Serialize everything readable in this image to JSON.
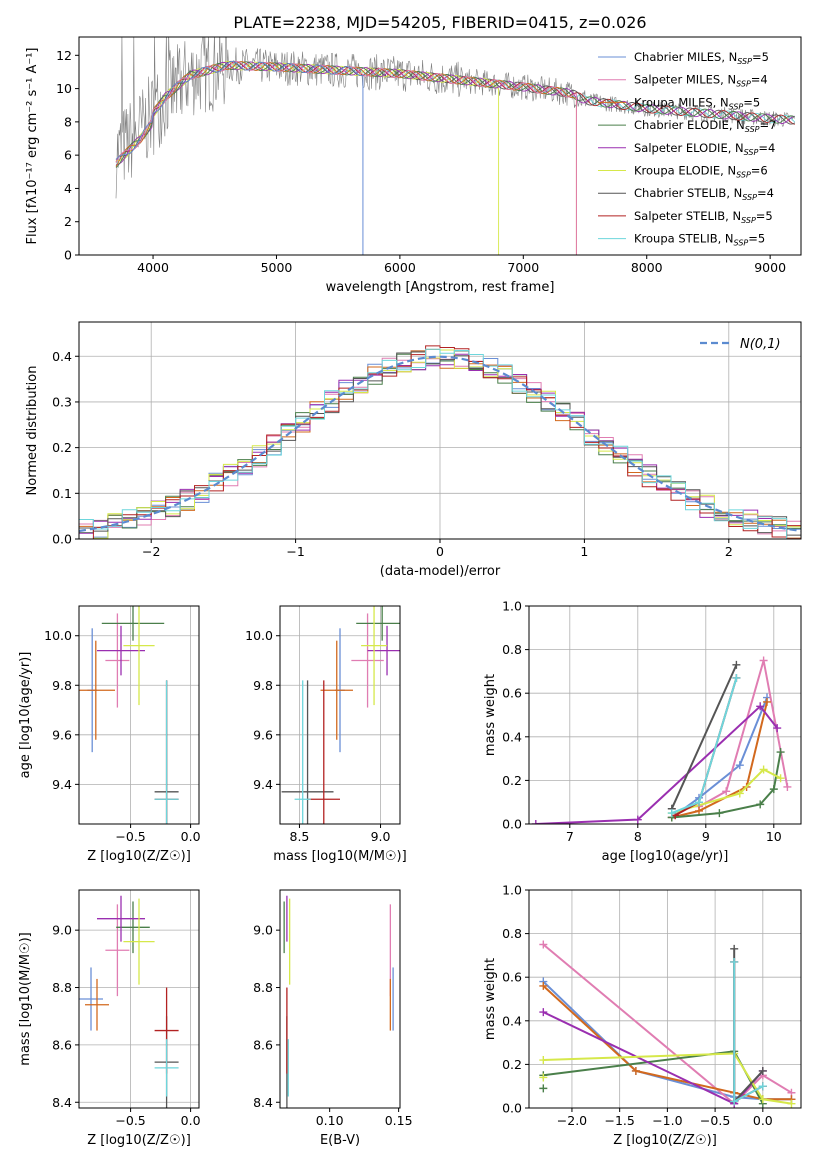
{
  "figure_title": "PLATE=2238, MJD=54205, FIBERID=0415, z=0.026",
  "colors": {
    "Chabrier MILES": "#6a8fd6",
    "Salpeter MILES": "#e07db2",
    "Kroupa MILES": "#d2691e",
    "Chabrier ELODIE": "#4a7f4a",
    "Salpeter ELODIE": "#9a2fb0",
    "Kroupa ELODIE": "#d6e84a",
    "Chabrier STELIB": "#555555",
    "Salpeter STELIB": "#b22222",
    "Kroupa STELIB": "#6dd6dc",
    "data": "#808080",
    "grid": "#b0b0b0",
    "normal_curve": "#5b8bd0"
  },
  "chart_data": [
    {
      "id": "spectrum",
      "type": "line",
      "title": "",
      "xlabel": "wavelength [Angstrom, rest frame]",
      "ylabel": "Flux [fλ10⁻¹⁷ erg cm⁻² s⁻¹ A⁻¹]",
      "xlim": [
        3400,
        9250
      ],
      "ylim": [
        0,
        13.1
      ],
      "xticks": [
        4000,
        5000,
        6000,
        7000,
        8000,
        9000
      ],
      "yticks": [
        0,
        2,
        4,
        6,
        8,
        10,
        12
      ],
      "grid": false,
      "legend_placement": "top-right",
      "legend": [
        "Chabrier MILES, N_SSP=5",
        "Salpeter MILES, N_SSP=4",
        "Kroupa MILES, N_SSP=5",
        "Chabrier ELODIE, N_SSP=7",
        "Salpeter ELODIE, N_SSP=4",
        "Kroupa ELODIE, N_SSP=6",
        "Chabrier STELIB, N_SSP=4",
        "Salpeter STELIB, N_SSP=5",
        "Kroupa STELIB, N_SSP=5"
      ],
      "data_envelope": {
        "x": [
          3700,
          3900,
          4100,
          4300,
          4600,
          5000,
          5500,
          6000,
          6500,
          7000,
          7400,
          7500,
          8000,
          8500,
          9000,
          9200
        ],
        "y": [
          6.0,
          7.5,
          9.5,
          10.8,
          11.4,
          11.3,
          11.1,
          10.9,
          10.5,
          10.1,
          9.7,
          9.3,
          8.8,
          8.5,
          8.2,
          8.1
        ]
      },
      "model_cutoffs": {
        "Chabrier MILES": 5700,
        "Salpeter MILES": 7430,
        "Kroupa MILES": 7430,
        "Kroupa ELODIE": 6800
      }
    },
    {
      "id": "residuals",
      "type": "step",
      "xlabel": "(data-model)/error",
      "ylabel": "Normed distribution",
      "xlim": [
        -2.5,
        2.5
      ],
      "ylim": [
        0,
        0.475
      ],
      "xticks": [
        -2,
        -1,
        0,
        1,
        2
      ],
      "yticks": [
        0.0,
        0.1,
        0.2,
        0.3,
        0.4
      ],
      "grid": true,
      "legend_placement": "top-right",
      "legend": [
        "N(0,1)"
      ],
      "bin_width": 0.1
    },
    {
      "id": "age_vs_Z",
      "type": "errorbar",
      "xlabel": "Z [log10(Z/Z☉)]",
      "ylabel": "age  [log10(age/yr)]",
      "xlim": [
        -0.93,
        0.07
      ],
      "ylim": [
        9.24,
        10.12
      ],
      "xticks": [
        -0.5,
        0.0
      ],
      "yticks": [
        9.4,
        9.6,
        9.8,
        10.0
      ],
      "grid": true,
      "points": [
        {
          "model": "Chabrier MILES",
          "x": -0.82,
          "xerr": 0.04,
          "y": 9.78,
          "yerr": 0.25
        },
        {
          "model": "Salpeter MILES",
          "x": -0.61,
          "xerr": 0.1,
          "y": 9.9,
          "yerr": 0.19
        },
        {
          "model": "Kroupa MILES",
          "x": -0.79,
          "xerr": 0.16,
          "y": 9.78,
          "yerr": 0.2
        },
        {
          "model": "Chabrier ELODIE",
          "x": -0.48,
          "xerr": 0.26,
          "y": 10.05,
          "yerr": 0.07
        },
        {
          "model": "Salpeter ELODIE",
          "x": -0.58,
          "xerr": 0.2,
          "y": 9.94,
          "yerr": 0.1
        },
        {
          "model": "Kroupa ELODIE",
          "x": -0.43,
          "xerr": 0.13,
          "y": 9.96,
          "yerr": 0.24
        },
        {
          "model": "Chabrier STELIB",
          "x": -0.2,
          "xerr": 0.1,
          "y": 9.37,
          "yerr": 0.45
        },
        {
          "model": "Salpeter STELIB",
          "x": -0.2,
          "xerr": 0.1,
          "y": 9.34,
          "yerr": 0.48
        },
        {
          "model": "Kroupa STELIB",
          "x": -0.2,
          "xerr": 0.1,
          "y": 9.34,
          "yerr": 0.48
        }
      ]
    },
    {
      "id": "age_vs_mass",
      "type": "errorbar",
      "xlabel": "mass [log10(M/M☉)]",
      "ylabel": "",
      "xlim": [
        8.38,
        9.12
      ],
      "ylim": [
        9.24,
        10.12
      ],
      "xticks": [
        8.5,
        9.0
      ],
      "yticks": [
        9.4,
        9.6,
        9.8,
        10.0
      ],
      "grid": true,
      "points": [
        {
          "model": "Chabrier MILES",
          "x": 8.75,
          "xerr": 0.03,
          "y": 9.78,
          "yerr": 0.25
        },
        {
          "model": "Salpeter MILES",
          "x": 8.92,
          "xerr": 0.1,
          "y": 9.9,
          "yerr": 0.19
        },
        {
          "model": "Kroupa MILES",
          "x": 8.73,
          "xerr": 0.1,
          "y": 9.78,
          "yerr": 0.2
        },
        {
          "model": "Chabrier ELODIE",
          "x": 9.01,
          "xerr": 0.16,
          "y": 10.05,
          "yerr": 0.07
        },
        {
          "model": "Salpeter ELODIE",
          "x": 9.04,
          "xerr": 0.12,
          "y": 9.94,
          "yerr": 0.1
        },
        {
          "model": "Kroupa ELODIE",
          "x": 8.96,
          "xerr": 0.08,
          "y": 9.96,
          "yerr": 0.24
        },
        {
          "model": "Chabrier STELIB",
          "x": 8.55,
          "xerr": 0.16,
          "y": 9.37,
          "yerr": 0.45
        },
        {
          "model": "Salpeter STELIB",
          "x": 8.65,
          "xerr": 0.1,
          "y": 9.34,
          "yerr": 0.48
        },
        {
          "model": "Kroupa STELIB",
          "x": 8.52,
          "xerr": 0.05,
          "y": 9.34,
          "yerr": 0.48
        }
      ]
    },
    {
      "id": "weight_vs_age",
      "type": "line",
      "xlabel": "age  [log10(age/yr)]",
      "ylabel": "mass weight",
      "xlim": [
        6.4,
        10.4
      ],
      "ylim": [
        0,
        1.0
      ],
      "xticks": [
        7,
        8,
        9,
        10
      ],
      "yticks": [
        0.0,
        0.2,
        0.4,
        0.6,
        0.8,
        1.0
      ],
      "grid": true,
      "series": [
        {
          "model": "Chabrier MILES",
          "x": [
            8.5,
            8.9,
            9.5,
            9.9
          ],
          "y": [
            0.03,
            0.12,
            0.27,
            0.58
          ]
        },
        {
          "model": "Salpeter MILES",
          "x": [
            8.9,
            9.3,
            9.85,
            10.2
          ],
          "y": [
            0.08,
            0.15,
            0.75,
            0.17
          ]
        },
        {
          "model": "Kroupa MILES",
          "x": [
            8.5,
            8.9,
            9.6,
            9.9
          ],
          "y": [
            0.03,
            0.06,
            0.17,
            0.56
          ]
        },
        {
          "model": "Chabrier ELODIE",
          "x": [
            8.5,
            9.2,
            9.8,
            10.0,
            10.1
          ],
          "y": [
            0.03,
            0.05,
            0.09,
            0.16,
            0.33
          ]
        },
        {
          "model": "Salpeter ELODIE",
          "x": [
            6.5,
            8.0,
            9.8,
            10.05
          ],
          "y": [
            0.0,
            0.02,
            0.54,
            0.44
          ]
        },
        {
          "model": "Kroupa ELODIE",
          "x": [
            8.5,
            9.5,
            9.85,
            10.1
          ],
          "y": [
            0.05,
            0.14,
            0.25,
            0.21
          ]
        },
        {
          "model": "Chabrier STELIB",
          "x": [
            8.5,
            9.45
          ],
          "y": [
            0.07,
            0.73
          ]
        },
        {
          "model": "Salpeter STELIB",
          "x": [
            8.55,
            8.9,
            9.45
          ],
          "y": [
            0.04,
            0.1,
            0.67
          ]
        },
        {
          "model": "Kroupa STELIB",
          "x": [
            8.5,
            8.9,
            9.45
          ],
          "y": [
            0.05,
            0.1,
            0.67
          ]
        }
      ]
    },
    {
      "id": "mass_vs_Z",
      "type": "errorbar",
      "xlabel": "Z [log10(Z/Z☉)]",
      "ylabel": "mass [log10(M/M☉)]",
      "xlim": [
        -0.93,
        0.07
      ],
      "ylim": [
        8.38,
        9.14
      ],
      "xticks": [
        -0.5,
        0.0
      ],
      "yticks": [
        8.4,
        8.6,
        8.8,
        9.0
      ],
      "grid": true,
      "points": [
        {
          "model": "Chabrier MILES",
          "x": -0.83,
          "xerr": 0.1,
          "y": 8.76,
          "yerr": 0.11
        },
        {
          "model": "Salpeter MILES",
          "x": -0.61,
          "xerr": 0.1,
          "y": 8.93,
          "yerr": 0.16
        },
        {
          "model": "Kroupa MILES",
          "x": -0.78,
          "xerr": 0.1,
          "y": 8.74,
          "yerr": 0.09
        },
        {
          "model": "Chabrier ELODIE",
          "x": -0.48,
          "xerr": 0.14,
          "y": 9.01,
          "yerr": 0.09
        },
        {
          "model": "Salpeter ELODIE",
          "x": -0.58,
          "xerr": 0.2,
          "y": 9.04,
          "yerr": 0.08
        },
        {
          "model": "Kroupa ELODIE",
          "x": -0.43,
          "xerr": 0.13,
          "y": 8.96,
          "yerr": 0.15
        },
        {
          "model": "Chabrier STELIB",
          "x": -0.2,
          "xerr": 0.1,
          "y": 8.54,
          "yerr": 0.16
        },
        {
          "model": "Salpeter STELIB",
          "x": -0.2,
          "xerr": 0.1,
          "y": 8.65,
          "yerr": 0.15
        },
        {
          "model": "Kroupa STELIB",
          "x": -0.2,
          "xerr": 0.1,
          "y": 8.52,
          "yerr": 0.1
        }
      ]
    },
    {
      "id": "mass_vs_ebv",
      "type": "errorbar",
      "xlabel": "E(B-V)",
      "ylabel": "",
      "xlim": [
        0.064,
        0.151
      ],
      "ylim": [
        8.38,
        9.14
      ],
      "xticks": [
        0.1,
        0.15
      ],
      "yticks": [
        8.4,
        8.6,
        8.8,
        9.0
      ],
      "grid": false,
      "points": [
        {
          "model": "Chabrier MILES",
          "x": 0.146,
          "xerr": 0,
          "y": 8.76,
          "yerr": 0.11
        },
        {
          "model": "Salpeter MILES",
          "x": 0.144,
          "xerr": 0,
          "y": 8.93,
          "yerr": 0.16
        },
        {
          "model": "Kroupa MILES",
          "x": 0.144,
          "xerr": 0,
          "y": 8.74,
          "yerr": 0.09
        },
        {
          "model": "Chabrier ELODIE",
          "x": 0.067,
          "xerr": 0,
          "y": 9.01,
          "yerr": 0.09
        },
        {
          "model": "Salpeter ELODIE",
          "x": 0.069,
          "xerr": 0,
          "y": 9.04,
          "yerr": 0.08
        },
        {
          "model": "Kroupa ELODIE",
          "x": 0.071,
          "xerr": 0,
          "y": 8.96,
          "yerr": 0.15
        },
        {
          "model": "Chabrier STELIB",
          "x": 0.069,
          "xerr": 0,
          "y": 8.54,
          "yerr": 0.16
        },
        {
          "model": "Salpeter STELIB",
          "x": 0.069,
          "xerr": 0,
          "y": 8.65,
          "yerr": 0.15
        },
        {
          "model": "Kroupa STELIB",
          "x": 0.07,
          "xerr": 0,
          "y": 8.52,
          "yerr": 0.1
        }
      ]
    },
    {
      "id": "weight_vs_Z",
      "type": "line",
      "xlabel": "Z [log10(Z/Z☉)]",
      "ylabel": "mass weight",
      "xlim": [
        -2.45,
        0.4
      ],
      "ylim": [
        0,
        1.0
      ],
      "xticks": [
        -2.0,
        -1.5,
        -1.0,
        -0.5,
        0.0
      ],
      "yticks": [
        0.0,
        0.2,
        0.4,
        0.6,
        0.8,
        1.0
      ],
      "grid": true,
      "series": [
        {
          "model": "Chabrier MILES",
          "x": [
            -2.3,
            -1.33,
            -0.3,
            0.0,
            0.3
          ],
          "y": [
            0.58,
            0.17,
            0.05,
            0.04,
            0.04
          ]
        },
        {
          "model": "Salpeter MILES",
          "x": [
            -2.3,
            -0.3,
            0.0,
            0.3
          ],
          "y": [
            0.75,
            0.02,
            0.15,
            0.07
          ]
        },
        {
          "model": "Kroupa MILES",
          "x": [
            -2.3,
            -1.33,
            -0.3,
            0.0,
            0.3
          ],
          "y": [
            0.56,
            0.17,
            0.07,
            0.04,
            0.04
          ]
        },
        {
          "model": "Chabrier ELODIE",
          "x": [
            -2.3,
            -0.3,
            0.0
          ],
          "y": [
            0.15,
            0.26,
            0.02
          ]
        },
        {
          "model": "Salpeter ELODIE",
          "x": [
            -2.3,
            -0.3,
            0.0
          ],
          "y": [
            0.44,
            0.02,
            0.17
          ]
        },
        {
          "model": "Kroupa ELODIE",
          "x": [
            -2.3,
            -0.3,
            0.0,
            0.3
          ],
          "y": [
            0.22,
            0.25,
            0.04,
            0.02
          ]
        },
        {
          "model": "Chabrier STELIB",
          "x": [
            -0.3,
            -0.3,
            0.0
          ],
          "y": [
            0.73,
            0.03,
            0.17
          ]
        },
        {
          "model": "Salpeter STELIB",
          "x": [
            -0.3,
            -0.3,
            0.0
          ],
          "y": [
            0.67,
            0.03,
            0.1
          ]
        },
        {
          "model": "Kroupa STELIB",
          "x": [
            -0.3,
            -0.3,
            0.0
          ],
          "y": [
            0.67,
            0.03,
            0.1
          ]
        }
      ],
      "extra_markers": [
        {
          "model": "Chabrier ELODIE",
          "x": -2.3,
          "y": 0.09
        },
        {
          "model": "Kroupa ELODIE",
          "x": -2.3,
          "y": 0.14
        }
      ]
    }
  ]
}
